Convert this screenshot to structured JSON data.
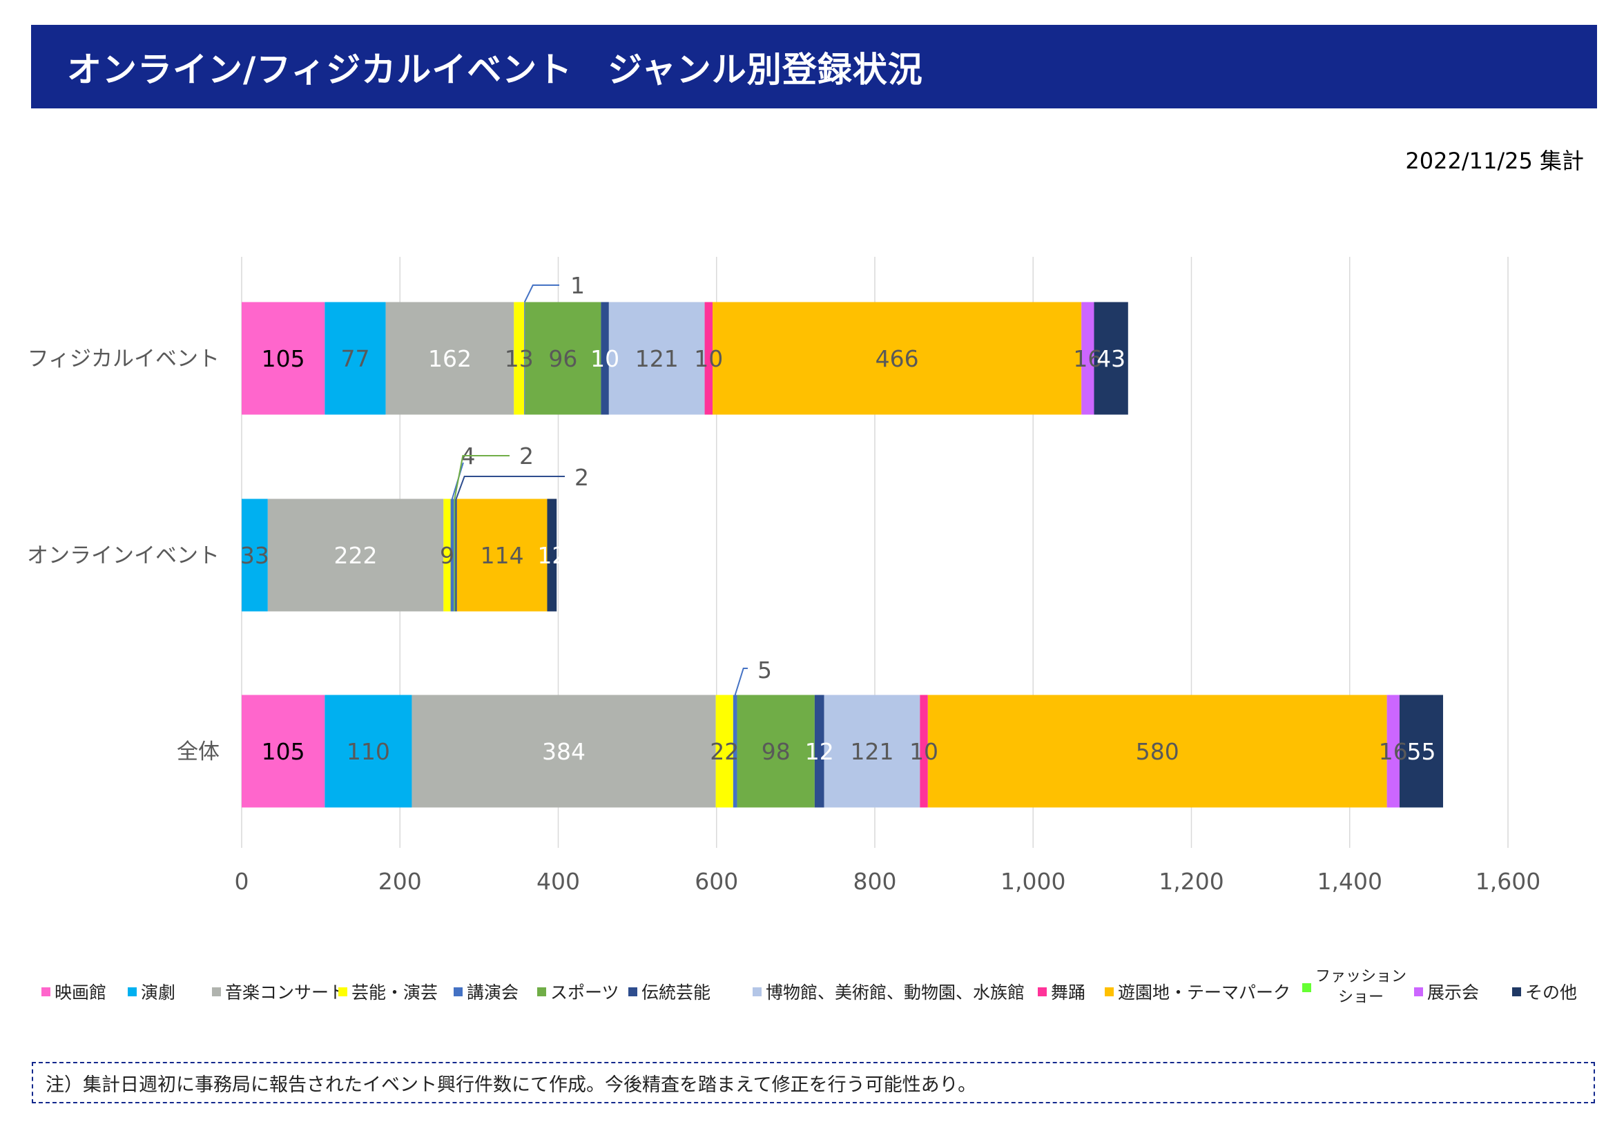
{
  "header": {
    "title": "オンライン/フィジカルイベント　ジャンル別登録状況"
  },
  "date_stamp": "2022/11/25 集計",
  "note": "注）集計日週初に事務局に報告されたイベント興行件数にて作成。今後精査を踏まえて修正を行う可能性あり。",
  "chart_data": {
    "type": "bar",
    "orientation": "horizontal",
    "stacked": true,
    "categories": [
      "フィジカルイベント",
      "オンラインイベント",
      "全体"
    ],
    "xlim": [
      0,
      1600
    ],
    "xticks": [
      0,
      200,
      400,
      600,
      800,
      1000,
      1200,
      1400,
      1600
    ],
    "xtick_labels": [
      "0",
      "200",
      "400",
      "600",
      "800",
      "1,000",
      "1,200",
      "1,400",
      "1,600"
    ],
    "grid": "vertical",
    "legend_position": "bottom",
    "series": [
      {
        "name": "映画館",
        "color": "#ff66cc",
        "label_color": "#000000",
        "values": [
          105,
          0,
          105
        ]
      },
      {
        "name": "演劇",
        "color": "#00b0f0",
        "label_color": "#595959",
        "values": [
          77,
          33,
          110
        ]
      },
      {
        "name": "音楽コンサート",
        "color": "#b0b3ae",
        "label_color": "#ffffff",
        "values": [
          162,
          222,
          384
        ]
      },
      {
        "name": "芸能・演芸",
        "color": "#ffff00",
        "label_color": "#595959",
        "values": [
          13,
          9,
          22
        ]
      },
      {
        "name": "講演会",
        "color": "#4472c4",
        "label_color": "#595959",
        "values": [
          1,
          4,
          5
        ]
      },
      {
        "name": "スポーツ",
        "color": "#70ad47",
        "label_color": "#595959",
        "values": [
          96,
          2,
          98
        ]
      },
      {
        "name": "伝統芸能",
        "color": "#2e4d8e",
        "label_color": "#ffffff",
        "values": [
          10,
          2,
          12
        ]
      },
      {
        "name": "博物館、美術館、動物園、水族館",
        "color": "#b4c6e7",
        "label_color": "#595959",
        "values": [
          121,
          0,
          121
        ]
      },
      {
        "name": "舞踊",
        "color": "#ff3399",
        "label_color": "#595959",
        "values": [
          10,
          0,
          10
        ]
      },
      {
        "name": "遊園地・テーマパーク",
        "color": "#ffc000",
        "label_color": "#595959",
        "values": [
          466,
          114,
          580
        ]
      },
      {
        "name": "ファッション\nショー",
        "color": "#66ff33",
        "label_color": "#595959",
        "values": [
          0,
          0,
          0
        ]
      },
      {
        "name": "展示会",
        "color": "#cc66ff",
        "label_color": "#595959",
        "values": [
          16,
          0,
          16
        ]
      },
      {
        "name": "その他",
        "color": "#1f3864",
        "label_color": "#ffffff",
        "values": [
          43,
          12,
          55
        ]
      }
    ],
    "callouts": [
      {
        "category": 0,
        "series": 4,
        "text": "1"
      },
      {
        "category": 1,
        "series": 4,
        "text": "4"
      },
      {
        "category": 1,
        "series": 5,
        "text": "2"
      },
      {
        "category": 1,
        "series": 6,
        "text": "2"
      },
      {
        "category": 2,
        "series": 4,
        "text": "5"
      }
    ]
  }
}
